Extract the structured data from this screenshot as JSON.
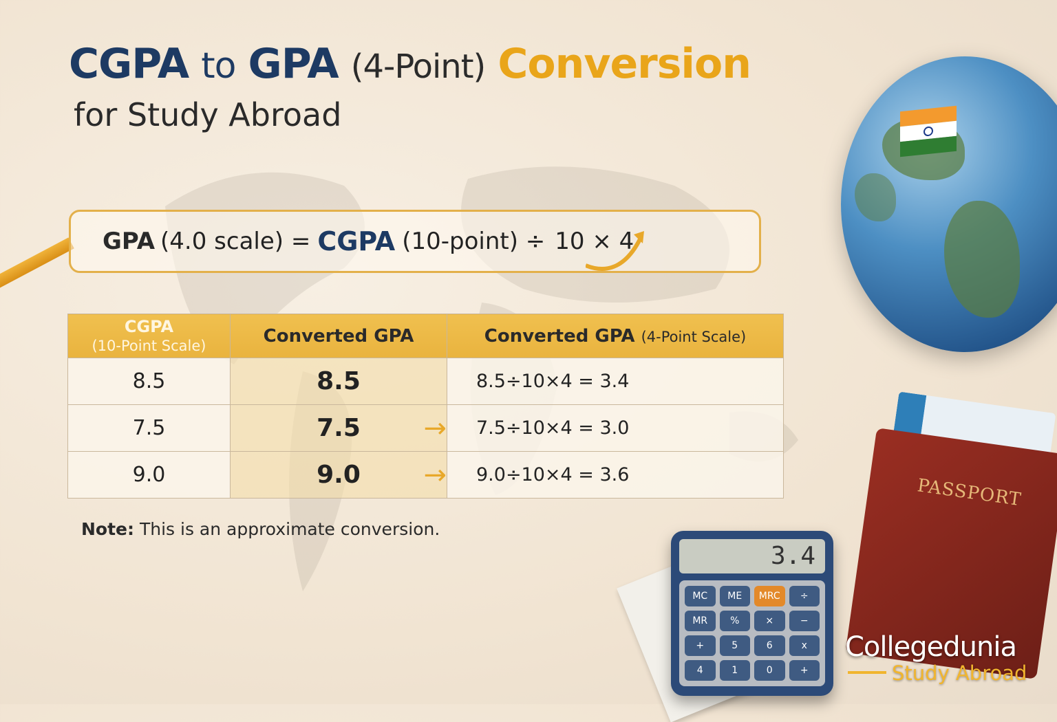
{
  "title": {
    "part1": "CGPA",
    "part2": "to",
    "part3": "GPA",
    "part4": "(4-Point)",
    "part5": "Conversion",
    "subtitle": "for Study Abroad"
  },
  "formula": {
    "lhs": "GPA",
    "lhs_scale": "(4.0 scale) =",
    "rhs": "CGPA",
    "rhs_scale": "(10-point) ÷",
    "ops": "10 × 4"
  },
  "table": {
    "headers": [
      {
        "main": "CGPA",
        "sub": "(10-Point Scale)"
      },
      {
        "main": "Converted GPA",
        "sub": ""
      },
      {
        "main": "Converted GPA",
        "sub": "(4-Point Scale)"
      }
    ],
    "rows": [
      {
        "cgpa": "8.5",
        "converted": "8.5",
        "formula": "8.5÷10×4 = 3.4",
        "arrow": false
      },
      {
        "cgpa": "7.5",
        "converted": "7.5",
        "formula": "7.5÷10×4 = 3.0",
        "arrow": true
      },
      {
        "cgpa": "9.0",
        "converted": "9.0",
        "formula": "9.0÷10×4 = 3.6",
        "arrow": true
      }
    ]
  },
  "note": {
    "label": "Note:",
    "text": " This is an approximate conversion."
  },
  "illustration": {
    "calculator_display": "3.4",
    "calculator_keys": [
      "MC",
      "ME",
      "MRC",
      "÷",
      "MR",
      "%",
      "×",
      "−",
      "+",
      "5",
      "6",
      "x",
      "4",
      "1",
      "0",
      "+"
    ],
    "passport_label": "PASSPORT"
  },
  "brand": {
    "name": "Collegedunia",
    "tagline": "Study Abroad"
  },
  "colors": {
    "navy": "#1d3a63",
    "gold": "#e9a51a",
    "header": "#f0c04f"
  }
}
